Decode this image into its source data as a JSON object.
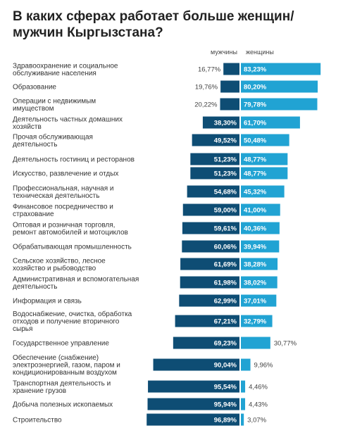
{
  "title": "В каких сферах работает больше женщин/ мужчин Кыргызстана?",
  "colors": {
    "men": "#0e4d74",
    "women": "#21a3d3"
  },
  "chart_data": {
    "type": "bar",
    "orientation": "horizontal-diverging",
    "title": "В каких сферах работает больше женщин/ мужчин Кыргызстана?",
    "legend_placement": "top",
    "series": [
      {
        "name": "мужчины",
        "values": [
          16.77,
          19.76,
          20.22,
          38.3,
          49.52,
          51.23,
          51.23,
          54.68,
          59.0,
          59.61,
          60.06,
          61.69,
          61.98,
          62.99,
          67.21,
          69.23,
          90.04,
          95.54,
          95.94,
          96.89
        ]
      },
      {
        "name": "женщины",
        "values": [
          83.23,
          80.2,
          79.78,
          61.7,
          50.48,
          48.77,
          48.77,
          45.32,
          41.0,
          40.36,
          39.94,
          38.28,
          38.02,
          37.01,
          32.79,
          30.77,
          9.96,
          4.46,
          4.43,
          3.07
        ]
      }
    ],
    "value_labels": {
      "men": [
        "16,77%",
        "19,76%",
        "20,22%",
        "38,30%",
        "49,52%",
        "51,23%",
        "51,23%",
        "54,68%",
        "59,00%",
        "59,61%",
        "60,06%",
        "61,69%",
        "61,98%",
        "62,99%",
        "67,21%",
        "69,23%",
        "90,04%",
        "95,54%",
        "95,94%",
        "96,89%"
      ],
      "women": [
        "83,23%",
        "80,20%",
        "79,78%",
        "61,70%",
        "50,48%",
        "48,77%",
        "48,77%",
        "45,32%",
        "41,00%",
        "40,36%",
        "39,94%",
        "38,28%",
        "38,02%",
        "37,01%",
        "32,79%",
        "30,77%",
        "9,96%",
        "4,46%",
        "4,43%",
        "3,07%"
      ]
    },
    "categories": [
      [
        "Здравоохранение и социальное",
        "обслуживание населения"
      ],
      [
        "Образование"
      ],
      [
        "Операции с недвижимым",
        "имуществом"
      ],
      [
        "Деятельность частных домашних",
        "хозяйств"
      ],
      [
        "Прочая обслуживающая",
        "деятельность"
      ],
      [
        "Деятельность гостиниц и ресторанов"
      ],
      [
        "Искусство, развлечение и отдых"
      ],
      [
        "Профессиональная, научная и",
        "техническая деятельность"
      ],
      [
        "Финансовое посредничество и",
        "страхование"
      ],
      [
        "Оптовая и розничная торговля,",
        "ремонт автомобилей и мотоциклов"
      ],
      [
        "Обрабатывающая промышленность"
      ],
      [
        "Сельское хозяйство, лесное",
        "хозяйство и рыбоводство"
      ],
      [
        "Административная и вспомогательная",
        "деятельность"
      ],
      [
        "Информация и связь"
      ],
      [
        "Водоснабжение, очистка, обработка",
        "отходов и получение вторичного",
        "сырья"
      ],
      [
        "Государственное управление"
      ],
      [
        "Обеспечение (снабжение)",
        "электроэнергией, газом, паром и",
        "кондиционированным воздухом"
      ],
      [
        "Транспортная деятельность и",
        "хранение грузов"
      ],
      [
        "Добыча полезных ископаемых"
      ],
      [
        "Строительство"
      ]
    ]
  }
}
